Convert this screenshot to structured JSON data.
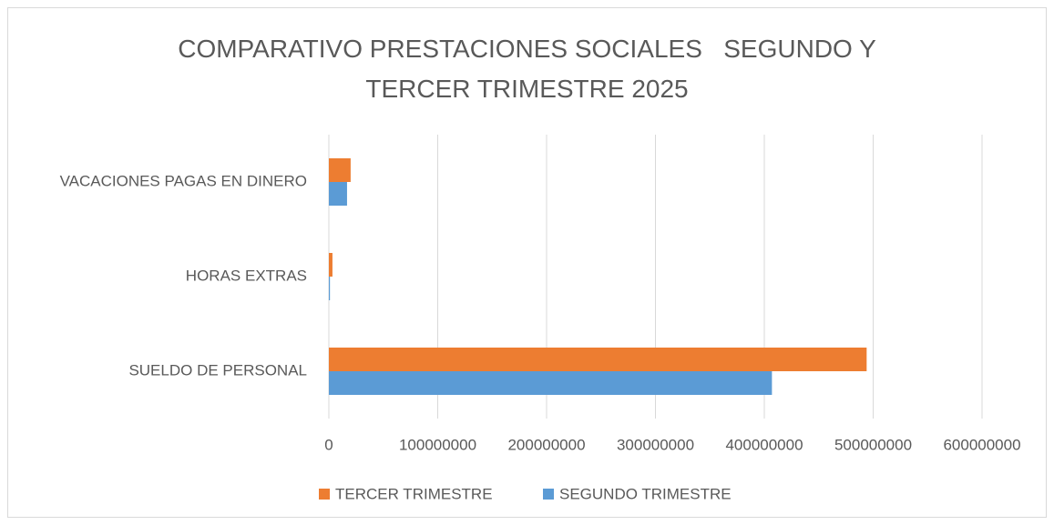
{
  "chart_data": {
    "type": "bar",
    "orientation": "horizontal",
    "title": "COMPARATIVO PRESTACIONES SOCIALES   SEGUNDO Y TERCER TRIMESTRE 2025",
    "categories": [
      "SUELDO DE PERSONAL",
      "HORAS EXTRAS",
      "VACACIONES PAGAS EN DINERO"
    ],
    "series": [
      {
        "name": "TERCER TRIMESTRE",
        "color": "#ed7d31",
        "values": [
          494000000,
          3300000,
          20000000
        ]
      },
      {
        "name": "SEGUNDO TRIMESTRE",
        "color": "#5b9bd5",
        "values": [
          407000000,
          1000000,
          16700000
        ]
      }
    ],
    "xlim": [
      0,
      600000000
    ],
    "xticks": [
      0,
      100000000,
      200000000,
      300000000,
      400000000,
      500000000,
      600000000
    ],
    "grid": true,
    "legend": "bottom"
  }
}
